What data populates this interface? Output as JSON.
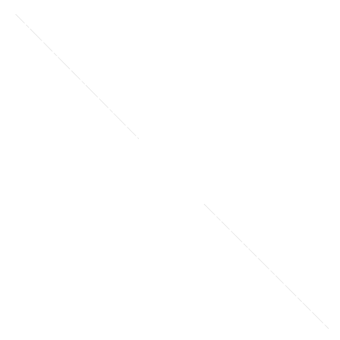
{
  "canvas": {
    "background": "#ffffff",
    "line_color": "#d9d9d9",
    "segment_color": "#e8e8e8"
  }
}
